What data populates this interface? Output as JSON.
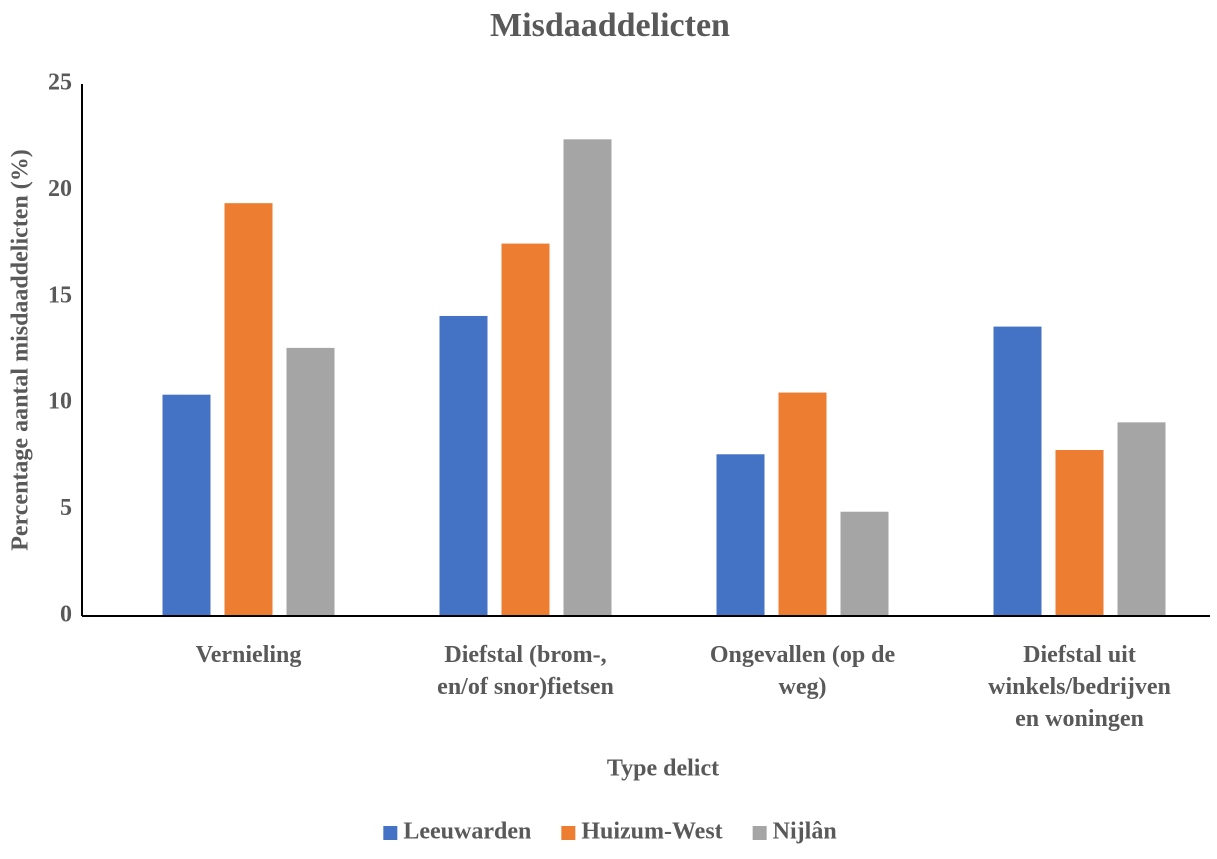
{
  "chart_data": {
    "type": "bar",
    "title": "Misdaaddelicten",
    "x_label": "Type delict",
    "y_label": "Percentage aantal misdaaddelicten (%)",
    "categories": [
      "Vernieling",
      "Diefstal (brom-,\nen/of snor)fietsen",
      "Ongevallen (op de\nweg)",
      "Diefstal uit\nwinkels/bedrijven\nen woningen"
    ],
    "series": [
      {
        "name": "Leeuwarden",
        "color": "#4472c4",
        "values": [
          10.4,
          14.1,
          7.6,
          13.6
        ]
      },
      {
        "name": "Huizum-West",
        "color": "#ed7d31",
        "values": [
          19.4,
          17.5,
          10.5,
          7.8
        ]
      },
      {
        "name": "Nijlân",
        "color": "#a5a5a5",
        "values": [
          12.6,
          22.4,
          4.9,
          9.1
        ]
      }
    ],
    "ylim": [
      0,
      25
    ],
    "yticks": [
      0,
      5,
      10,
      15,
      20,
      25
    ],
    "grid": false,
    "legend": "bottom"
  }
}
